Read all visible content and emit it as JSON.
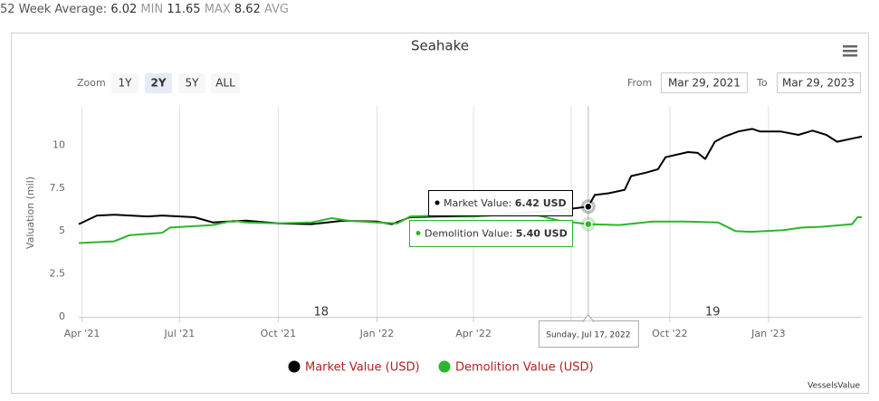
{
  "stats": {
    "label": "52 Week Average:",
    "items": [
      {
        "value": 6.02,
        "label": "MIN"
      },
      {
        "value": 11.65,
        "label": "MAX"
      },
      {
        "value": 8.62,
        "label": "AVG"
      }
    ]
  },
  "controls": {
    "zoom_label": "Zoom",
    "zoom_buttons": [
      "1Y",
      "2Y",
      "5Y",
      "ALL"
    ],
    "selected": "2Y",
    "from_label": "From",
    "from": "Mar 29, 2021",
    "to_label": "To",
    "to": "Mar 29, 2023"
  },
  "chart_data": {
    "type": "line",
    "title": "Seahake",
    "y_label": "Valuation (mil)",
    "grid": "x",
    "xlim": [
      "2021-03-29",
      "2023-03-29"
    ],
    "xticks": [
      {
        "value": "2021-04-01",
        "label": "Apr '21"
      },
      {
        "value": "2021-07-01",
        "label": "Jul '21"
      },
      {
        "value": "2021-10-01",
        "label": "Oct '21"
      },
      {
        "value": "2022-01-01",
        "label": "Jan '22"
      },
      {
        "value": "2022-04-01",
        "label": "Apr '22"
      },
      {
        "value": "2022-07-01",
        "label": "Jul '22"
      },
      {
        "value": "2022-10-01",
        "label": "Oct '22"
      },
      {
        "value": "2023-01-01",
        "label": "Jan '23"
      }
    ],
    "ylim": [
      0,
      12.5
    ],
    "yticks": [
      0,
      2.5,
      5,
      7.5,
      10
    ],
    "series": [
      {
        "name": "Market Value (USD)",
        "color": "#000000",
        "x": [
          "2021-03-29",
          "2021-04-15",
          "2021-05-01",
          "2021-06-01",
          "2021-06-15",
          "2021-07-01",
          "2021-07-15",
          "2021-08-01",
          "2021-08-15",
          "2021-09-01",
          "2021-10-01",
          "2021-11-01",
          "2021-12-01",
          "2022-01-01",
          "2022-01-15",
          "2022-02-01",
          "2022-03-01",
          "2022-04-01",
          "2022-05-01",
          "2022-06-01",
          "2022-06-15",
          "2022-07-01",
          "2022-07-17",
          "2022-07-23",
          "2022-08-05",
          "2022-08-20",
          "2022-08-26",
          "2022-09-09",
          "2022-09-20",
          "2022-09-27",
          "2022-10-18",
          "2022-10-27",
          "2022-11-03",
          "2022-11-12",
          "2022-11-21",
          "2022-12-04",
          "2022-12-17",
          "2022-12-24",
          "2023-01-12",
          "2023-01-29",
          "2023-02-11",
          "2023-02-24",
          "2023-03-06",
          "2023-03-21",
          "2023-03-29"
        ],
        "values": [
          5.4,
          5.9,
          5.95,
          5.85,
          5.9,
          5.85,
          5.8,
          5.5,
          5.55,
          5.6,
          5.45,
          5.4,
          5.6,
          5.55,
          5.4,
          5.8,
          5.85,
          5.85,
          6.0,
          6.1,
          6.2,
          6.3,
          6.42,
          7.1,
          7.2,
          7.4,
          8.2,
          8.4,
          8.6,
          9.3,
          9.6,
          9.55,
          9.2,
          10.2,
          10.5,
          10.8,
          10.95,
          10.8,
          10.8,
          10.6,
          10.85,
          10.6,
          10.2,
          10.4,
          10.5
        ]
      },
      {
        "name": "Demolition Value (USD)",
        "color": "#2db52d",
        "x": [
          "2021-03-29",
          "2021-05-01",
          "2021-05-15",
          "2021-06-15",
          "2021-06-22",
          "2021-08-01",
          "2021-08-20",
          "2021-09-01",
          "2021-10-01",
          "2021-11-01",
          "2021-11-20",
          "2021-12-05",
          "2022-01-01",
          "2022-01-20",
          "2022-02-01",
          "2022-03-01",
          "2022-04-01",
          "2022-05-01",
          "2022-06-01",
          "2022-06-20",
          "2022-07-17",
          "2022-08-15",
          "2022-09-15",
          "2022-10-15",
          "2022-11-15",
          "2022-12-01",
          "2022-12-15",
          "2023-01-15",
          "2023-02-01",
          "2023-02-20",
          "2023-03-20",
          "2023-03-25",
          "2023-03-29"
        ],
        "values": [
          4.3,
          4.4,
          4.75,
          4.9,
          5.2,
          5.35,
          5.6,
          5.5,
          5.45,
          5.5,
          5.75,
          5.6,
          5.5,
          5.45,
          5.85,
          5.9,
          5.85,
          5.95,
          5.9,
          5.6,
          5.4,
          5.35,
          5.55,
          5.55,
          5.5,
          5.0,
          4.95,
          5.05,
          5.2,
          5.25,
          5.4,
          5.8,
          5.8
        ]
      }
    ],
    "annotations": [
      {
        "text": "18",
        "x": "2021-11-10"
      },
      {
        "text": "19",
        "x": "2022-11-10"
      }
    ],
    "tooltip": {
      "x": "2022-07-17",
      "date": "Sunday, Jul 17, 2022",
      "items": [
        {
          "label": "Market Value:",
          "value": 6.42,
          "value_label": "6.42 USD"
        },
        {
          "label": "Demolition Value:",
          "value": 5.4,
          "value_label": "5.40 USD"
        }
      ]
    },
    "credits": "VesselsValue"
  }
}
